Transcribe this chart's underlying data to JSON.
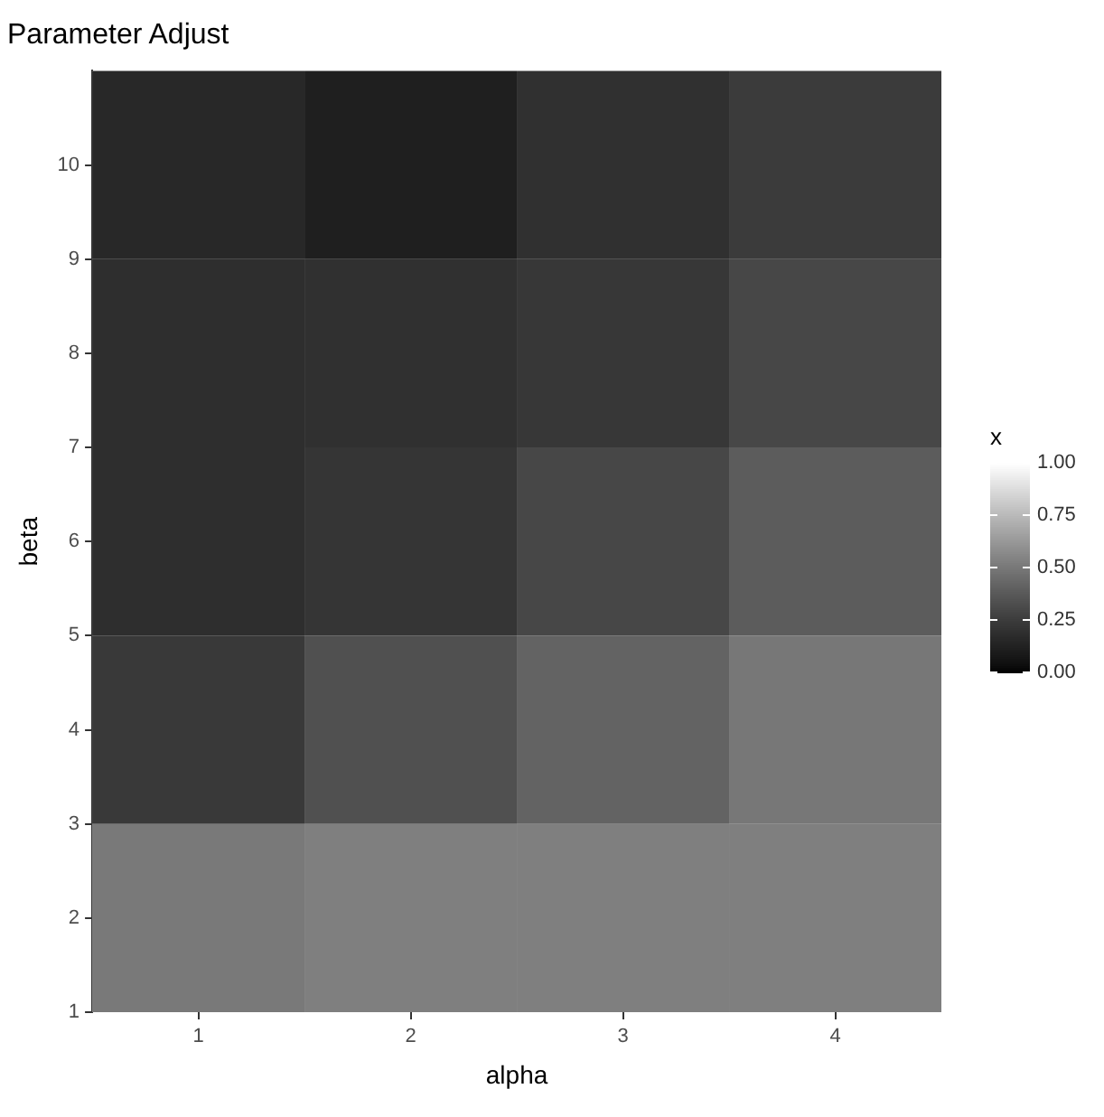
{
  "chart_data": {
    "type": "heatmap",
    "title": "Parameter Adjust",
    "xlabel": "alpha",
    "ylabel": "beta",
    "clabel": "x",
    "categories": [
      "1",
      "2",
      "3",
      "4"
    ],
    "ylim": [
      1,
      11
    ],
    "yticks": [
      1,
      2,
      3,
      4,
      5,
      6,
      7,
      8,
      9,
      10
    ],
    "cells": [
      [
        0.16,
        0.12,
        0.2,
        0.25
      ],
      [
        0.19,
        0.2,
        0.23,
        0.3
      ],
      [
        0.19,
        0.22,
        0.3,
        0.39
      ],
      [
        0.24,
        0.34,
        0.42,
        0.5
      ],
      [
        0.51,
        0.53,
        0.53,
        0.53
      ]
    ],
    "clim": [
      0,
      1
    ],
    "cticks": [
      {
        "value": 0,
        "label": "0.00"
      },
      {
        "value": 0.25,
        "label": "0.25"
      },
      {
        "value": 0.5,
        "label": "0.50"
      },
      {
        "value": 0.75,
        "label": "0.75"
      },
      {
        "value": 1,
        "label": "1.00"
      }
    ]
  }
}
